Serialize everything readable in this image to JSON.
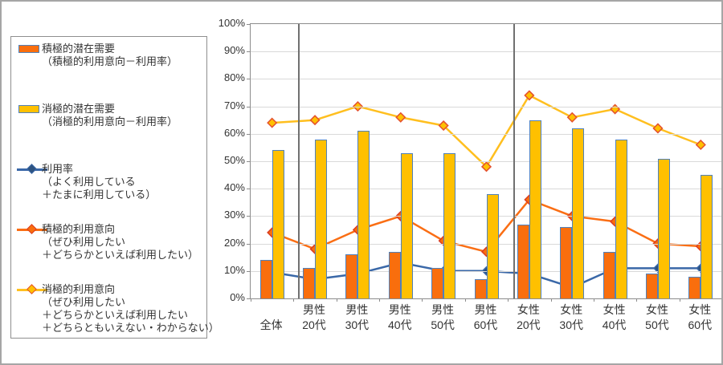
{
  "figure": {
    "kind": "excel-combo-chart",
    "background": "#ffffff"
  },
  "colors": {
    "active_orange": "#f96e0d",
    "passive_yellow": "#ffc000",
    "bar_border_blue": "#4f81bd",
    "usage_line_blue": "#3a68a8",
    "usage_marker_navy": "#2e5380",
    "active_line_orange": "#fa6e14",
    "active_marker_border_red": "#da3b21",
    "passive_line_gold": "#ffbf1f",
    "passive_marker_border_red": "#e4502e",
    "gridline_gray": "#d9d9d9",
    "separator_gray": "#707070",
    "axis_gray": "#8c8c8c"
  },
  "legend": {
    "items": [
      {
        "icon": "bar-swatch",
        "fill": "#f96e0d",
        "border": "#4f81bd",
        "lines": [
          "積極的潜在需要",
          "（積極的利用意向－利用率）"
        ]
      },
      {
        "icon": "bar-swatch",
        "fill": "#ffc000",
        "border": "#4f81bd",
        "lines": [
          "消極的潜在需要",
          "（消極的利用意向－利用率）"
        ]
      },
      {
        "icon": "line-marker",
        "line_color": "#3a68a8",
        "marker_fill": "#2e5380",
        "marker_border": "#3a68a8",
        "lines": [
          "利用率",
          "（よく利用している",
          "＋たまに利用している）"
        ]
      },
      {
        "icon": "line-marker",
        "line_color": "#fa6e14",
        "marker_fill": "#f96e0d",
        "marker_border": "#da3b21",
        "lines": [
          "積極的利用意向",
          "（ぜひ利用したい",
          "＋どちらかといえば利用したい）"
        ]
      },
      {
        "icon": "line-marker",
        "line_color": "#ffbf1f",
        "marker_fill": "#ffc000",
        "marker_border": "#e4502e",
        "lines": [
          "消極的利用意向",
          "（ぜひ利用したい",
          "＋どちらかといえば利用したい",
          "＋どちらともいえない・わからない）"
        ]
      }
    ]
  },
  "chart_data": {
    "type": "bar+line-combo",
    "title": "",
    "categories": [
      "全体",
      "男性20代",
      "男性30代",
      "男性40代",
      "男性50代",
      "男性60代",
      "女性20代",
      "女性30代",
      "女性40代",
      "女性50代",
      "女性60代"
    ],
    "category_labels": [
      [
        "",
        "全体"
      ],
      [
        "男性",
        "20代"
      ],
      [
        "男性",
        "30代"
      ],
      [
        "男性",
        "40代"
      ],
      [
        "男性",
        "50代"
      ],
      [
        "男性",
        "60代"
      ],
      [
        "女性",
        "20代"
      ],
      [
        "女性",
        "30代"
      ],
      [
        "女性",
        "40代"
      ],
      [
        "女性",
        "50代"
      ],
      [
        "女性",
        "60代"
      ]
    ],
    "y_axis": {
      "min": 0,
      "max": 100,
      "step": 10,
      "format": "percent",
      "tick_labels": [
        "0%",
        "10%",
        "20%",
        "30%",
        "40%",
        "50%",
        "60%",
        "70%",
        "80%",
        "90%",
        "100%"
      ],
      "grid": true
    },
    "separators_after_categories": [
      "全体",
      "男性60代"
    ],
    "series": [
      {
        "id": "active-latent-demand",
        "name": "積極的潜在需要（積極的利用意向－利用率）",
        "type": "bar",
        "fill": "#f96e0d",
        "border": "#4f81bd",
        "values": [
          14,
          11,
          16,
          17,
          11,
          7,
          27,
          26,
          17,
          9,
          8
        ]
      },
      {
        "id": "passive-latent-demand",
        "name": "消極的潜在需要（消極的利用意向－利用率）",
        "type": "bar",
        "fill": "#ffc000",
        "border": "#4f81bd",
        "values": [
          54,
          58,
          61,
          53,
          53,
          38,
          65,
          62,
          58,
          51,
          45
        ]
      },
      {
        "id": "passive-intent",
        "name": "消極的利用意向（ぜひ利用したい＋どちらかといえば利用したい＋どちらともいえない・わからない）",
        "type": "line",
        "line_color": "#ffbf1f",
        "marker_fill": "#ffc000",
        "marker_border": "#e4502e",
        "marker_size": 5.5,
        "values": [
          64,
          65,
          70,
          66,
          63,
          48,
          74,
          66,
          69,
          62,
          56
        ]
      },
      {
        "id": "active-intent",
        "name": "積極的利用意向（ぜひ利用したい＋どちらかといえば利用したい）",
        "type": "line",
        "line_color": "#fa6e14",
        "marker_fill": "#f96e0d",
        "marker_border": "#da3b21",
        "marker_size": 5.5,
        "values": [
          24,
          18,
          25,
          30,
          21,
          17,
          36,
          30,
          28,
          20,
          19
        ]
      },
      {
        "id": "usage-rate",
        "name": "利用率（よく利用している＋たまに利用している）",
        "type": "line",
        "line_color": "#3a68a8",
        "marker_fill": "#2e5380",
        "marker_border": "#3a68a8",
        "marker_size": 5,
        "values": [
          9.5,
          7,
          9,
          13,
          10,
          10,
          9,
          4,
          11,
          11,
          11
        ]
      }
    ]
  }
}
